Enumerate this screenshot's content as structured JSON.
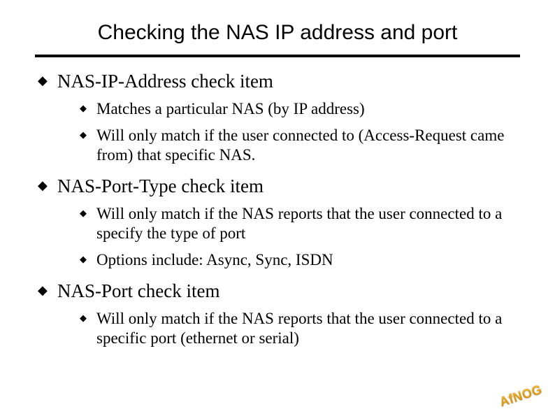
{
  "slide": {
    "title": "Checking the NAS IP address and port",
    "rule_color": "#000000",
    "background": "#ffffff",
    "title_font": "Verdana",
    "body_font": "Times New Roman",
    "title_fontsize": 30,
    "l1_fontsize": 27,
    "l2_fontsize": 23,
    "bullet_glyph": "◆",
    "sections": [
      {
        "heading": "NAS-IP-Address check item",
        "items": [
          "Matches a particular NAS (by IP address)",
          "Will only match if the user connected to (Access-Request came from) that specific NAS."
        ]
      },
      {
        "heading": "NAS-Port-Type check item",
        "items": [
          "Will only match if the NAS reports that the user connected to a specify the type of port",
          "Options include: Async, Sync, ISDN"
        ]
      },
      {
        "heading": "NAS-Port check item",
        "items": [
          "Will only match if the NAS reports that the user connected to a specific port (ethernet or serial)"
        ]
      }
    ],
    "logo_text": "AfNOG"
  }
}
